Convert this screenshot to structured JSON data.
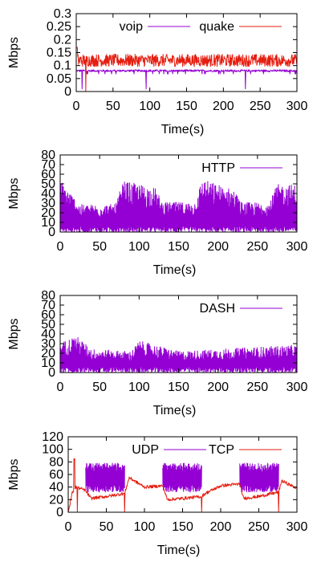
{
  "colors": {
    "purple": "#9400d3",
    "red": "#e51e10",
    "axis": "#000000"
  },
  "chart_data": [
    {
      "type": "line",
      "xlabel": "Time(s)",
      "ylabel": "Mbps",
      "xlim": [
        0,
        300
      ],
      "ylim": [
        0,
        0.3
      ],
      "xticks": [
        "0",
        "50",
        "100",
        "150",
        "200",
        "250",
        "300"
      ],
      "yticks": [
        "0",
        "0.05",
        "0.1",
        "0.15",
        "0.2",
        "0.25",
        "0.3"
      ],
      "legend": "top-right",
      "series": [
        {
          "name": "voip",
          "color": "#9400d3",
          "mean": 0.08,
          "spread": 0.004,
          "dips": [
            8,
            95,
            230
          ]
        },
        {
          "name": "quake",
          "color": "#e51e10",
          "mean": 0.12,
          "spread": 0.02,
          "start_spike": 0.17,
          "dips": [
            13
          ]
        }
      ]
    },
    {
      "type": "line",
      "xlabel": "Time(s)",
      "ylabel": "Mbps",
      "xlim": [
        0,
        300
      ],
      "ylim": [
        0,
        80
      ],
      "xticks": [
        "0",
        "50",
        "100",
        "150",
        "200",
        "250",
        "300"
      ],
      "yticks": [
        "0",
        "10",
        "20",
        "30",
        "40",
        "50",
        "60",
        "70",
        "80"
      ],
      "legend": "top-right",
      "series": [
        {
          "name": "HTTP",
          "color": "#9400d3",
          "level_x": [
            0,
            25,
            70,
            80,
            120,
            130,
            170,
            180,
            220,
            230,
            265,
            275,
            300
          ],
          "level_y": [
            50,
            26,
            26,
            48,
            42,
            28,
            28,
            50,
            40,
            28,
            28,
            45,
            45
          ]
        }
      ]
    },
    {
      "type": "line",
      "xlabel": "Time(s)",
      "ylabel": "Mbps",
      "xlim": [
        0,
        300
      ],
      "ylim": [
        0,
        80
      ],
      "xticks": [
        "0",
        "50",
        "100",
        "150",
        "200",
        "250",
        "300"
      ],
      "yticks": [
        "0",
        "10",
        "20",
        "30",
        "40",
        "50",
        "60",
        "70",
        "80"
      ],
      "legend": "top-right",
      "series": [
        {
          "name": "DASH",
          "color": "#9400d3",
          "level_x": [
            0,
            20,
            40,
            90,
            100,
            150,
            200,
            250,
            300
          ],
          "level_y": [
            28,
            35,
            22,
            20,
            30,
            20,
            22,
            24,
            26
          ]
        }
      ]
    },
    {
      "type": "line",
      "xlabel": "Time(s)",
      "ylabel": "Mbps",
      "xlim": [
        0,
        300
      ],
      "ylim": [
        0,
        120
      ],
      "xticks": [
        "0",
        "50",
        "100",
        "150",
        "200",
        "250",
        "300"
      ],
      "yticks": [
        "0",
        "20",
        "40",
        "60",
        "80",
        "100",
        "120"
      ],
      "legend": "top-right",
      "series": [
        {
          "name": "UDP",
          "color": "#9400d3",
          "bursts": [
            [
              23,
              74
            ],
            [
              124,
              175
            ],
            [
              225,
              276
            ]
          ],
          "burst_low": 32,
          "burst_high": 78
        },
        {
          "name": "TCP",
          "color": "#e51e10",
          "base_x": [
            0,
            5,
            10,
            22,
            30,
            50,
            74,
            80,
            100,
            124,
            130,
            150,
            175,
            180,
            200,
            225,
            230,
            250,
            276,
            280,
            300
          ],
          "base_y": [
            0,
            30,
            40,
            35,
            22,
            25,
            30,
            55,
            40,
            42,
            20,
            22,
            25,
            30,
            42,
            45,
            22,
            25,
            32,
            50,
            38
          ]
        }
      ]
    }
  ]
}
